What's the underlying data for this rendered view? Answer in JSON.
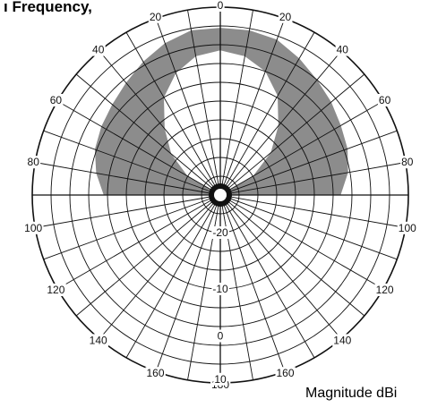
{
  "chart_data": {
    "type": "polar",
    "title": "ı Frequency,",
    "caption": "Magnitude dBi",
    "grid": true,
    "rings_count": 10,
    "spokes_step_deg": 10,
    "angle_labels": [
      {
        "text": "0",
        "angle": 0
      },
      {
        "text": "20",
        "angle": 20
      },
      {
        "text": "40",
        "angle": 40
      },
      {
        "text": "60",
        "angle": 60
      },
      {
        "text": "80",
        "angle": 80
      },
      {
        "text": "100",
        "angle": 100
      },
      {
        "text": "120",
        "angle": 120
      },
      {
        "text": "140",
        "angle": 140
      },
      {
        "text": "160",
        "angle": 160
      },
      {
        "text": "180",
        "angle": 180
      },
      {
        "text": "160",
        "angle": -160
      },
      {
        "text": "140",
        "angle": -140
      },
      {
        "text": "120",
        "angle": -120
      },
      {
        "text": "100",
        "angle": -100
      },
      {
        "text": "80",
        "angle": -80
      },
      {
        "text": "60",
        "angle": -60
      },
      {
        "text": "40",
        "angle": -40
      },
      {
        "text": "20",
        "angle": -20
      }
    ],
    "radial_labels": [
      {
        "text": "-20",
        "ring": 2
      },
      {
        "text": "-10",
        "ring": 5
      },
      {
        "text": "0",
        "ring": 7.5
      },
      {
        "text": "10",
        "ring": 9.8
      }
    ],
    "pattern": {
      "color": "#8c8c8c",
      "outer": [
        {
          "angle": -90,
          "r": 0.62
        },
        {
          "angle": -80,
          "r": 0.67
        },
        {
          "angle": -70,
          "r": 0.71
        },
        {
          "angle": -60,
          "r": 0.73
        },
        {
          "angle": -50,
          "r": 0.75
        },
        {
          "angle": -40,
          "r": 0.78
        },
        {
          "angle": -30,
          "r": 0.82
        },
        {
          "angle": -20,
          "r": 0.86
        },
        {
          "angle": -10,
          "r": 0.89
        },
        {
          "angle": 0,
          "r": 0.89
        },
        {
          "angle": 10,
          "r": 0.89
        },
        {
          "angle": 20,
          "r": 0.88
        },
        {
          "angle": 30,
          "r": 0.84
        },
        {
          "angle": 40,
          "r": 0.8
        },
        {
          "angle": 50,
          "r": 0.77
        },
        {
          "angle": 60,
          "r": 0.74
        },
        {
          "angle": 70,
          "r": 0.72
        },
        {
          "angle": 80,
          "r": 0.69
        },
        {
          "angle": 90,
          "r": 0.64
        }
      ],
      "inner": [
        {
          "angle": -60,
          "r": 0.2
        },
        {
          "angle": -50,
          "r": 0.34
        },
        {
          "angle": -40,
          "r": 0.46
        },
        {
          "angle": -30,
          "r": 0.6
        },
        {
          "angle": -20,
          "r": 0.69
        },
        {
          "angle": -10,
          "r": 0.75
        },
        {
          "angle": 0,
          "r": 0.77
        },
        {
          "angle": 10,
          "r": 0.75
        },
        {
          "angle": 20,
          "r": 0.7
        },
        {
          "angle": 30,
          "r": 0.61
        },
        {
          "angle": 40,
          "r": 0.48
        },
        {
          "angle": 50,
          "r": 0.35
        },
        {
          "angle": 60,
          "r": 0.2
        }
      ]
    }
  }
}
